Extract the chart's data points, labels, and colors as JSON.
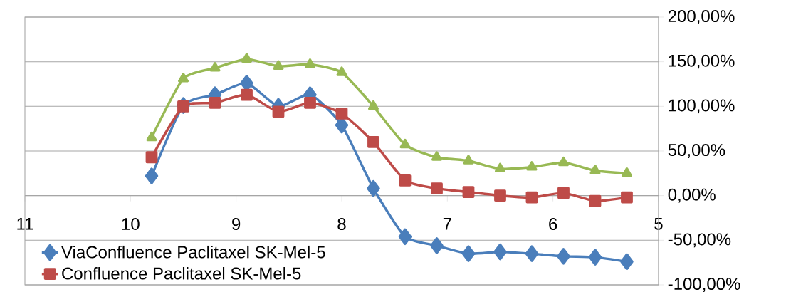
{
  "chart_data": {
    "type": "line",
    "x": [
      9.8,
      9.5,
      9.2,
      8.9,
      8.6,
      8.3,
      8.0,
      7.7,
      7.4,
      7.1,
      6.8,
      6.5,
      6.2,
      5.9,
      5.6,
      5.3
    ],
    "xlim": [
      11,
      5
    ],
    "xticks": [
      11,
      10,
      9,
      8,
      7,
      6,
      5
    ],
    "ylim": [
      -100,
      200
    ],
    "yticks": [
      {
        "value": -100,
        "label": "-100,00%"
      },
      {
        "value": -50,
        "label": "-50,00%"
      },
      {
        "value": 0,
        "label": "0,00%"
      },
      {
        "value": 50,
        "label": "50,00%"
      },
      {
        "value": 100,
        "label": "100,00%"
      },
      {
        "value": 150,
        "label": "150,00%"
      },
      {
        "value": 200,
        "label": "200,00%"
      }
    ],
    "grid": "y",
    "legend": "bottom left",
    "line_style": "solid",
    "series": [
      {
        "name": "ViaConfluence Paclitaxel SK-Mel-5",
        "color": "#4a7ebb",
        "marker": "diamond",
        "values": [
          22,
          101,
          113,
          126,
          100,
          113,
          79,
          8,
          -46,
          -56,
          -65,
          -63,
          -65,
          -68,
          -69,
          -74
        ]
      },
      {
        "name": "Confluence Paclitaxel SK-Mel-5",
        "color": "#be4b48",
        "marker": "square",
        "values": [
          43,
          100,
          104,
          113,
          94,
          104,
          92,
          60,
          17,
          8,
          4,
          0,
          -2,
          3,
          -6,
          -2
        ]
      },
      {
        "color": "#98b954",
        "marker": "triangle",
        "values": [
          65,
          131,
          143,
          153,
          145,
          147,
          138,
          100,
          57,
          43,
          39,
          30,
          32,
          37,
          28,
          25
        ]
      }
    ]
  }
}
